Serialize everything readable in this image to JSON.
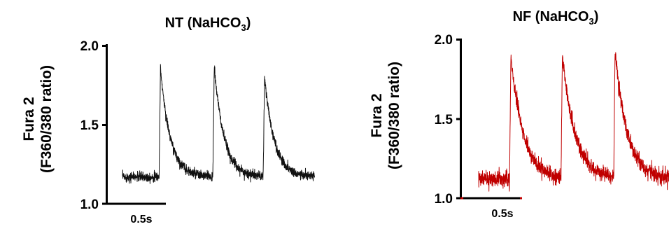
{
  "chart_data": [
    {
      "type": "line",
      "title": "NT (NaHCO",
      "title_subscript": "3",
      "title_suffix": ")",
      "ylabel_line1": "Fura 2",
      "ylabel_line2": "(F360/380 ratio)",
      "ylim": [
        1.0,
        2.0
      ],
      "yticks": [
        "1.0",
        "1.5",
        "2.0"
      ],
      "scale_bar_label": "0.5s",
      "scale_bar_seconds": 0.5,
      "duration_s": 1.68,
      "baseline": 1.17,
      "noise": 0.028,
      "color": "#111111",
      "transients": [
        {
          "t": 0.32,
          "peak": 1.86
        },
        {
          "t": 0.79,
          "peak": 1.87
        },
        {
          "t": 1.23,
          "peak": 1.8
        }
      ],
      "decay_tau_s": 0.085,
      "series": [
        {
          "x": [
            0.0,
            0.32,
            0.35,
            0.45,
            0.55,
            0.7,
            0.79,
            0.82,
            0.92,
            1.02,
            1.15,
            1.23,
            1.26,
            1.36,
            1.46,
            1.68
          ],
          "values": [
            1.17,
            1.17,
            1.86,
            1.45,
            1.25,
            1.18,
            1.18,
            1.87,
            1.46,
            1.26,
            1.19,
            1.19,
            1.8,
            1.42,
            1.24,
            1.17
          ]
        }
      ]
    },
    {
      "type": "line",
      "title": "NF (NaHCO",
      "title_subscript": "3",
      "title_suffix": ")",
      "ylabel_line1": "Fura 2",
      "ylabel_line2": "(F360/380 ratio)",
      "ylim": [
        1.0,
        2.0
      ],
      "yticks": [
        "1.0",
        "1.5",
        "2.0"
      ],
      "scale_bar_label": "0.5s",
      "scale_bar_seconds": 0.5,
      "duration_s": 1.76,
      "baseline": 1.12,
      "noise": 0.045,
      "color": "#c00000",
      "transients": [
        {
          "t": 0.27,
          "peak": 1.9
        },
        {
          "t": 0.72,
          "peak": 1.89
        },
        {
          "t": 1.18,
          "peak": 1.9
        }
      ],
      "decay_tau_s": 0.11,
      "series": [
        {
          "x": [
            0.0,
            0.27,
            0.3,
            0.4,
            0.5,
            0.65,
            0.72,
            0.75,
            0.85,
            0.95,
            1.1,
            1.18,
            1.21,
            1.31,
            1.41,
            1.76
          ],
          "values": [
            1.12,
            1.12,
            1.9,
            1.55,
            1.3,
            1.15,
            1.12,
            1.89,
            1.52,
            1.28,
            1.15,
            1.12,
            1.9,
            1.55,
            1.3,
            1.12
          ]
        }
      ]
    }
  ]
}
